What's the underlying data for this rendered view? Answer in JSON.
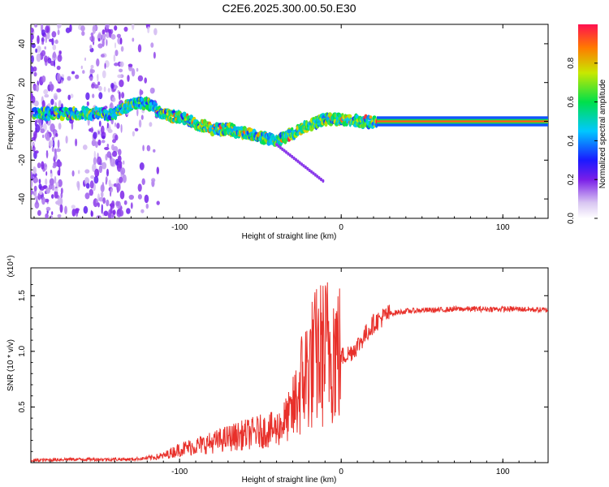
{
  "chart_data": [
    {
      "type": "heatmap",
      "title": "C2E6.2025.300.00.50.E30",
      "xlabel": "Height of straight line (km)",
      "ylabel": "Frequency (Hz)",
      "xlim": [
        -192,
        128
      ],
      "ylim": [
        -50,
        50
      ],
      "xticks": [
        -100,
        0,
        100
      ],
      "xtick_labels": [
        "-100",
        "0",
        "100"
      ],
      "yticks": [
        -40,
        -20,
        0,
        20,
        40
      ],
      "ytick_labels": [
        "-40",
        "-20",
        "0",
        "20",
        "40"
      ],
      "ridge": {
        "x": [
          -190,
          -170,
          -150,
          -140,
          -130,
          -120,
          -110,
          -100,
          -90,
          -80,
          -70,
          -60,
          -50,
          -40,
          -30,
          -20,
          -10,
          0,
          10,
          20,
          30,
          60,
          90,
          128
        ],
        "y": [
          4,
          4,
          4,
          4,
          9,
          9,
          4,
          2,
          -1,
          -4,
          -4,
          -6,
          -8,
          -10,
          -6,
          -2,
          1,
          1,
          0,
          0,
          0,
          0,
          0,
          0
        ]
      },
      "colorbar": {
        "label": "Normalized spectral amplitude",
        "range": [
          0,
          1
        ],
        "ticks": [
          0.0,
          0.2,
          0.4,
          0.6,
          0.8
        ],
        "tick_labels": [
          "0.0",
          "0.2",
          "0.4",
          "0.6",
          "0.8"
        ]
      }
    },
    {
      "type": "line",
      "xlabel": "Height of straight line (km)",
      "ylabel": "SNR (10 * v/v)",
      "scale_label": "(x10⁴)",
      "xlim": [
        -192,
        128
      ],
      "ylim": [
        0,
        1.75
      ],
      "xticks": [
        -100,
        0,
        100
      ],
      "xtick_labels": [
        "-100",
        "0",
        "100"
      ],
      "yticks": [
        0.5,
        1.0,
        1.5
      ],
      "ytick_labels": [
        "0.5",
        "1.0",
        "1.5"
      ],
      "series": [
        {
          "name": "SNR",
          "color": "#e8302a",
          "x": [
            -192,
            -170,
            -150,
            -130,
            -120,
            -110,
            -100,
            -90,
            -80,
            -70,
            -60,
            -50,
            -40,
            -30,
            -25,
            -20,
            -15,
            -10,
            -5,
            0,
            5,
            10,
            15,
            20,
            25,
            30,
            40,
            50,
            60,
            70,
            80,
            90,
            100,
            110,
            128
          ],
          "y": [
            0.02,
            0.03,
            0.03,
            0.03,
            0.04,
            0.06,
            0.12,
            0.15,
            0.18,
            0.22,
            0.25,
            0.28,
            0.3,
            0.45,
            0.7,
            0.85,
            0.95,
            1.0,
            1.05,
            0.95,
            0.98,
            1.05,
            1.15,
            1.25,
            1.3,
            1.34,
            1.36,
            1.37,
            1.37,
            1.38,
            1.38,
            1.38,
            1.38,
            1.38,
            1.37
          ]
        }
      ]
    }
  ]
}
